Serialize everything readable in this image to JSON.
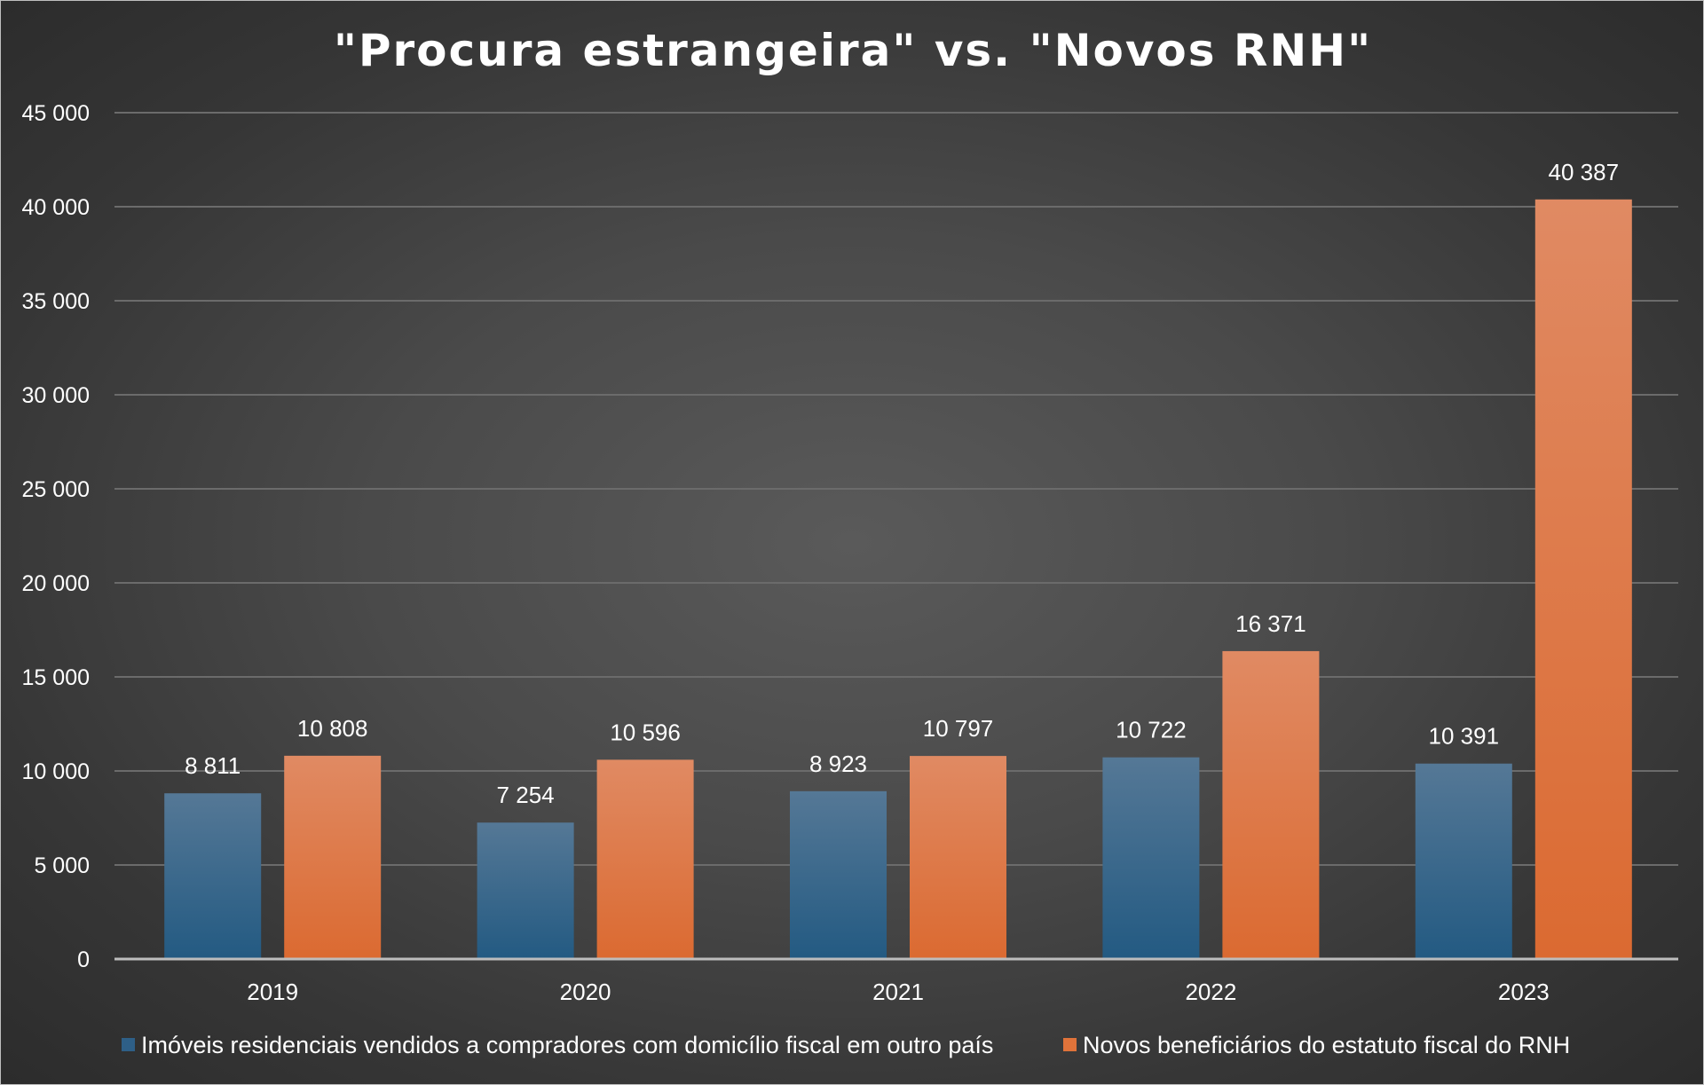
{
  "chart_data": {
    "type": "bar",
    "title": "\"Procura estrangeira\" vs. \"Novos RNH\"",
    "categories": [
      "2019",
      "2020",
      "2021",
      "2022",
      "2023"
    ],
    "series": [
      {
        "name": "Imóveis residenciais vendidos a compradores com domicílio fiscal em outro país",
        "values": [
          8811,
          7254,
          8923,
          10722,
          10391
        ],
        "labels": [
          "8 811",
          "7 254",
          "8 923",
          "10 722",
          "10 391"
        ],
        "color": "#2e5f87"
      },
      {
        "name": "Novos beneficiários do estatuto fiscal do RNH",
        "values": [
          10808,
          10596,
          10797,
          16371,
          40387
        ],
        "labels": [
          "10 808",
          "10 596",
          "10 797",
          "16 371",
          "40 387"
        ],
        "color": "#e0733a"
      }
    ],
    "ylim": [
      0,
      45000
    ],
    "yticks": [
      0,
      5000,
      10000,
      15000,
      20000,
      25000,
      30000,
      35000,
      40000,
      45000
    ],
    "ytick_labels": [
      "0",
      "5 000",
      "10 000",
      "15 000",
      "20 000",
      "25 000",
      "30 000",
      "35 000",
      "40 000",
      "45 000"
    ],
    "grid": true,
    "legend_position": "bottom",
    "background": "#3c3c3c"
  }
}
